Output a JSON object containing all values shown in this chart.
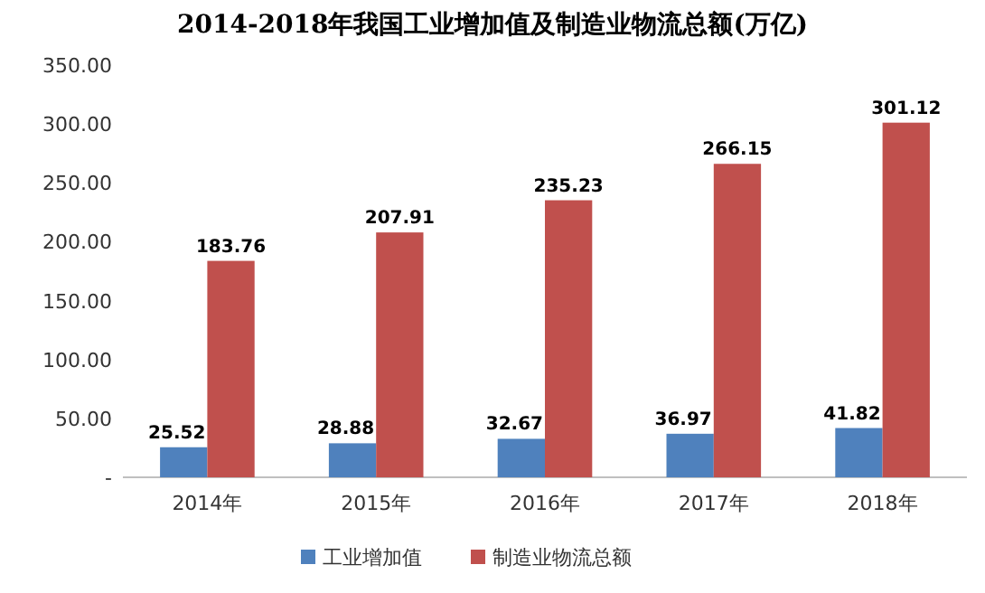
{
  "chart_data": {
    "type": "bar",
    "title": "2014-2018年我国工业增加值及制造业物流总额(万亿)",
    "categories": [
      "2014年",
      "2015年",
      "2016年",
      "2017年",
      "2018年"
    ],
    "series": [
      {
        "name": "工业增加值",
        "color": "#4f81bd",
        "values": [
          25.52,
          28.88,
          32.67,
          36.97,
          41.82
        ]
      },
      {
        "name": "制造业物流总额",
        "color": "#c0504d",
        "values": [
          183.76,
          207.91,
          235.23,
          266.15,
          301.12
        ]
      }
    ],
    "ylim": [
      0,
      350
    ],
    "yticks": [
      {
        "value": 0,
        "label": "-"
      },
      {
        "value": 50,
        "label": "50.00"
      },
      {
        "value": 100,
        "label": "100.00"
      },
      {
        "value": 150,
        "label": "150.00"
      },
      {
        "value": 200,
        "label": "200.00"
      },
      {
        "value": 250,
        "label": "250.00"
      },
      {
        "value": 300,
        "label": "300.00"
      },
      {
        "value": 350,
        "label": "350.00"
      }
    ],
    "data_labels": true,
    "legend": "bottom",
    "grid": false
  }
}
